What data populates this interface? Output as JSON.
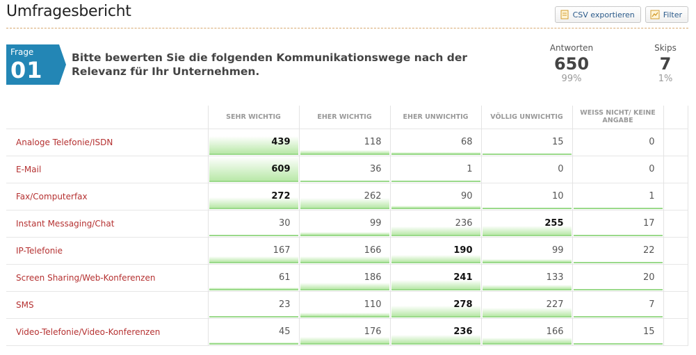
{
  "header": {
    "title": "Umfragesbericht",
    "csv_label": "CSV exportieren",
    "filter_label": "Filter"
  },
  "question": {
    "badge_label": "Frage",
    "badge_number": "01",
    "text": "Bitte bewerten Sie die folgenden Kommunikationswege nach der Relevanz für Ihr Unternehmen."
  },
  "stats": {
    "answers_label": "Antworten",
    "answers_value": "650",
    "answers_pct": "99%",
    "skips_label": "Skips",
    "skips_value": "7",
    "skips_pct": "1%"
  },
  "columns": [
    "SEHR WICHTIG",
    "EHER WICHTIG",
    "EHER UNWICHTIG",
    "VÖLLIG UNWICHTIG",
    "WEISS NICHT/ KEINE ANGABE"
  ],
  "rows": [
    {
      "label": "Analoge Telefonie/ISDN",
      "values": [
        439,
        118,
        68,
        15,
        0
      ]
    },
    {
      "label": "E-Mail",
      "values": [
        609,
        36,
        1,
        0,
        0
      ]
    },
    {
      "label": "Fax/Computerfax",
      "values": [
        272,
        262,
        90,
        10,
        1
      ]
    },
    {
      "label": "Instant Messaging/Chat",
      "values": [
        30,
        99,
        236,
        255,
        17
      ]
    },
    {
      "label": "IP-Telefonie",
      "values": [
        167,
        166,
        190,
        99,
        22
      ]
    },
    {
      "label": "Screen Sharing/Web-Konferenzen",
      "values": [
        61,
        186,
        241,
        133,
        20
      ]
    },
    {
      "label": "SMS",
      "values": [
        23,
        110,
        278,
        227,
        7
      ]
    },
    {
      "label": "Video-Telefonie/Video-Konferenzen",
      "values": [
        45,
        176,
        236,
        166,
        15
      ]
    }
  ],
  "icons": {
    "csv": "document-icon",
    "filter": "chart-icon"
  },
  "colors": {
    "badge": "#2386b5",
    "row_label": "#b53131",
    "bar": "#b9e8a8"
  }
}
